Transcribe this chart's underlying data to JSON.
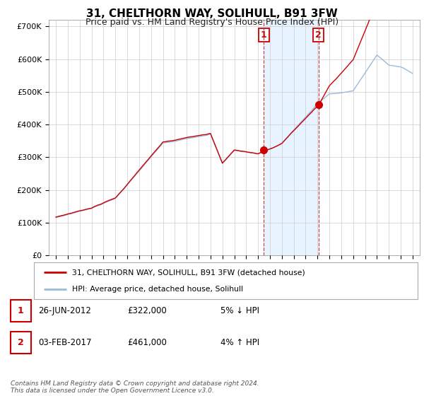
{
  "title": "31, CHELTHORN WAY, SOLIHULL, B91 3FW",
  "subtitle": "Price paid vs. HM Land Registry's House Price Index (HPI)",
  "ylim": [
    0,
    720000
  ],
  "yticks": [
    0,
    100000,
    200000,
    300000,
    400000,
    500000,
    600000,
    700000
  ],
  "ytick_labels": [
    "£0",
    "£100K",
    "£200K",
    "£300K",
    "£400K",
    "£500K",
    "£600K",
    "£700K"
  ],
  "hpi_color": "#99bbdd",
  "price_color": "#cc0000",
  "marker_color": "#cc0000",
  "vline_color": "#cc3333",
  "shade_color": "#ddeeff",
  "transaction1_date": 2012.49,
  "transaction1_price": 322000,
  "transaction1_label": "1",
  "transaction2_date": 2017.09,
  "transaction2_price": 461000,
  "transaction2_label": "2",
  "legend_line1": "31, CHELTHORN WAY, SOLIHULL, B91 3FW (detached house)",
  "legend_line2": "HPI: Average price, detached house, Solihull",
  "table_row1": [
    "1",
    "26-JUN-2012",
    "£322,000",
    "5% ↓ HPI"
  ],
  "table_row2": [
    "2",
    "03-FEB-2017",
    "£461,000",
    "4% ↑ HPI"
  ],
  "footer": "Contains HM Land Registry data © Crown copyright and database right 2024.\nThis data is licensed under the Open Government Licence v3.0.",
  "background_color": "#ffffff",
  "grid_color": "#cccccc",
  "title_fontsize": 11,
  "subtitle_fontsize": 9,
  "axis_fontsize": 8
}
